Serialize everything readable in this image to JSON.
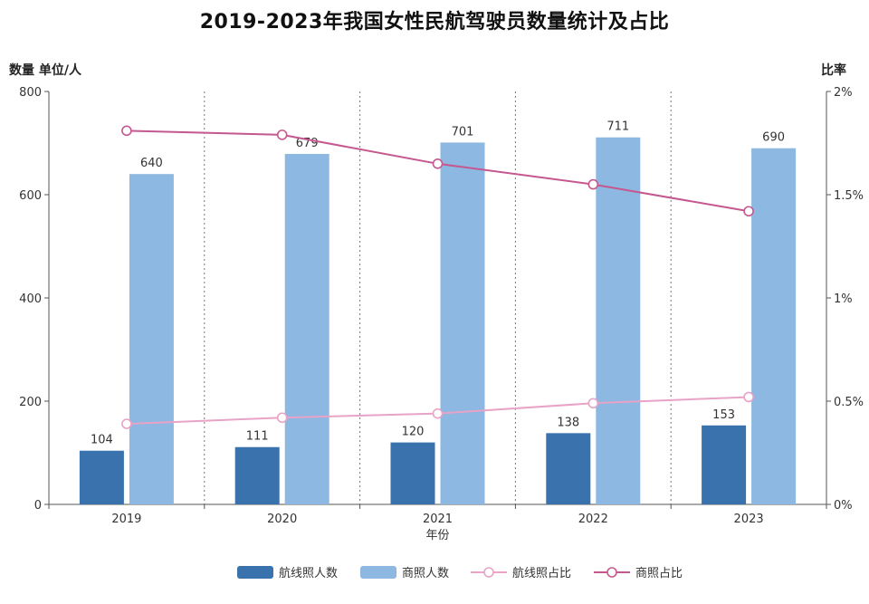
{
  "chart_data": {
    "type": "bar",
    "title": "2019-2023年我国女性民航驾驶员数量统计及占比",
    "xlabel": "年份",
    "ylabel_left": "数量 单位/人",
    "ylabel_right": "比率",
    "categories": [
      "2019",
      "2020",
      "2021",
      "2022",
      "2023"
    ],
    "ylim": [
      0,
      800
    ],
    "yticks": [
      0,
      200,
      400,
      600,
      800
    ],
    "y2lim": [
      0,
      2
    ],
    "y2ticks": [
      0,
      0.5,
      1,
      1.5,
      2
    ],
    "y2tick_labels": [
      "0%",
      "0.5%",
      "1%",
      "1.5%",
      "2%"
    ],
    "series": [
      {
        "name": "航线照人数",
        "kind": "bar",
        "axis": "left",
        "values": [
          104,
          111,
          120,
          138,
          153
        ],
        "color": "#3a72ad",
        "labels": [
          "104",
          "111",
          "120",
          "138",
          "153"
        ]
      },
      {
        "name": "商照人数",
        "kind": "bar",
        "axis": "left",
        "values": [
          640,
          679,
          701,
          711,
          690
        ],
        "color": "#8cb8e2",
        "labels": [
          "640",
          "679",
          "701",
          "711",
          "690"
        ]
      },
      {
        "name": "航线照占比",
        "kind": "line",
        "axis": "right",
        "values": [
          0.39,
          0.42,
          0.44,
          0.49,
          0.52
        ],
        "color": "#e8a3c6"
      },
      {
        "name": "商照占比",
        "kind": "line",
        "axis": "right",
        "values": [
          1.81,
          1.79,
          1.65,
          1.55,
          1.42
        ],
        "color": "#c4588f"
      }
    ],
    "grid": "vertical-dotted",
    "legend_position": "bottom"
  }
}
